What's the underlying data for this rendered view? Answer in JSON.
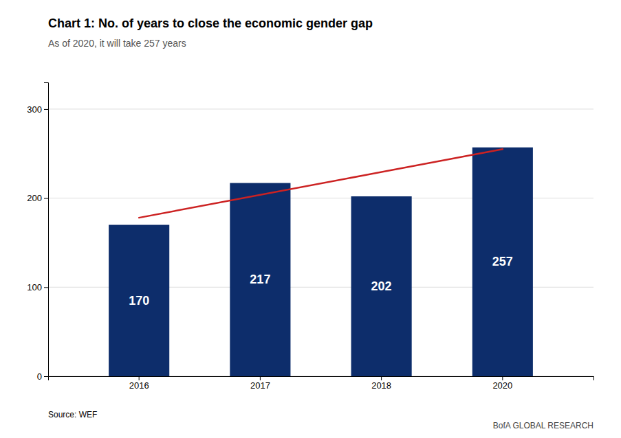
{
  "chart_data": {
    "type": "bar",
    "title": "Chart 1: No. of years to close the economic gender gap",
    "subtitle": "As of 2020, it will take 257 years",
    "categories": [
      "2016",
      "2017",
      "2018",
      "2020"
    ],
    "values": [
      170,
      217,
      202,
      257
    ],
    "color": "#0d2d6b",
    "data_labels": true,
    "trend_line": {
      "type": "line",
      "categories": [
        "2016",
        "2020"
      ],
      "values": [
        178,
        255
      ],
      "color": "#cc2222"
    },
    "ylim": [
      0,
      330
    ],
    "yticks": [
      0,
      100,
      200,
      300
    ],
    "grid": true,
    "annotations": [
      "Source: WEF",
      "BofA GLOBAL RESEARCH"
    ]
  }
}
